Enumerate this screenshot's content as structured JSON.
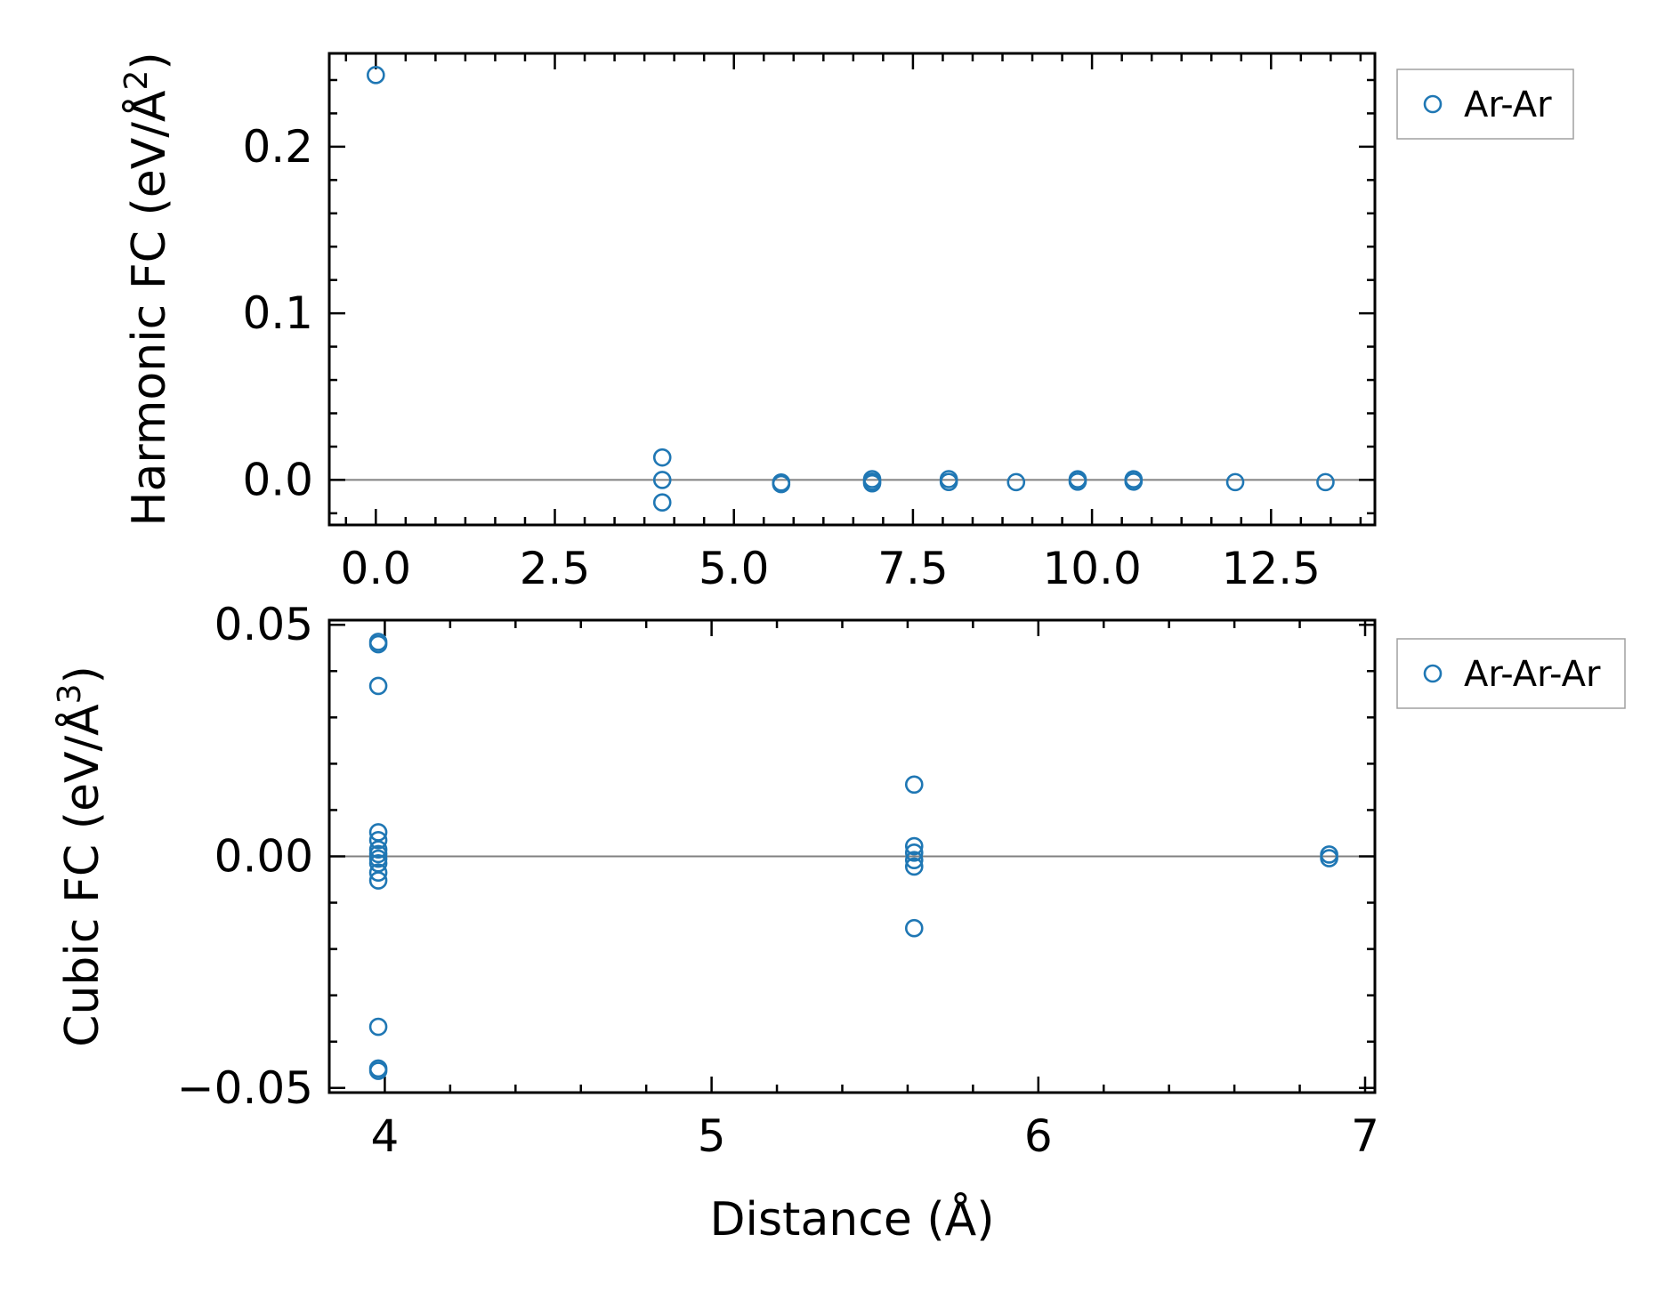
{
  "colors": {
    "marker": "#1f77b4",
    "zero_line": "#808080",
    "axes": "#000000"
  },
  "chart_data": [
    {
      "type": "scatter",
      "ylabel": "Harmonic FC (eV/Å",
      "ylabel_power": "2",
      "ylabel_close": ")",
      "xlabel": "",
      "xlim": [
        -0.65,
        13.95
      ],
      "ylim": [
        -0.027,
        0.256
      ],
      "xticks": [
        0.0,
        2.5,
        5.0,
        7.5,
        10.0,
        12.5
      ],
      "xtick_labels": [
        "0.0",
        "2.5",
        "5.0",
        "7.5",
        "10.0",
        "12.5"
      ],
      "yticks": [
        0.0,
        0.1,
        0.2
      ],
      "ytick_labels": [
        "0.0",
        "0.1",
        "0.2"
      ],
      "zero_line": true,
      "grid": false,
      "legend_position": "outside-right",
      "series": [
        {
          "name": "Ar-Ar",
          "points": [
            [
              0.0,
              0.243
            ],
            [
              4.0,
              0.0135
            ],
            [
              4.0,
              0.0
            ],
            [
              4.0,
              -0.0135
            ],
            [
              5.66,
              -0.0015
            ],
            [
              5.66,
              -0.0025
            ],
            [
              6.93,
              0.0005
            ],
            [
              6.93,
              -0.001
            ],
            [
              6.93,
              -0.002
            ],
            [
              8.0,
              0.0005
            ],
            [
              8.0,
              -0.0012
            ],
            [
              8.94,
              -0.0013
            ],
            [
              9.8,
              0.0004
            ],
            [
              9.8,
              -0.001
            ],
            [
              10.58,
              0.0004
            ],
            [
              10.58,
              -0.001
            ],
            [
              12.0,
              -0.0013
            ],
            [
              13.26,
              -0.0013
            ]
          ]
        }
      ]
    },
    {
      "type": "scatter",
      "ylabel": "Cubic FC (eV/Å",
      "ylabel_power": "3",
      "ylabel_close": ")",
      "xlabel": "Distance (Å)",
      "xlim": [
        3.83,
        7.03
      ],
      "ylim": [
        -0.051,
        0.051
      ],
      "xticks": [
        4,
        5,
        6,
        7
      ],
      "xtick_labels": [
        "4",
        "5",
        "6",
        "7"
      ],
      "yticks": [
        -0.05,
        0.0,
        0.05
      ],
      "ytick_labels": [
        "−0.05",
        "0.00",
        "0.05"
      ],
      "zero_line": true,
      "grid": false,
      "legend_position": "outside-right",
      "series": [
        {
          "name": "Ar-Ar-Ar",
          "points": [
            [
              3.98,
              0.0463
            ],
            [
              3.98,
              0.0458
            ],
            [
              3.98,
              0.0368
            ],
            [
              3.98,
              0.0052
            ],
            [
              3.98,
              0.0035
            ],
            [
              3.98,
              0.0015
            ],
            [
              3.98,
              0.0005
            ],
            [
              3.98,
              -0.0005
            ],
            [
              3.98,
              -0.0015
            ],
            [
              3.98,
              -0.0035
            ],
            [
              3.98,
              -0.0052
            ],
            [
              3.98,
              -0.0368
            ],
            [
              3.98,
              -0.0458
            ],
            [
              3.98,
              -0.0463
            ],
            [
              5.62,
              0.0155
            ],
            [
              5.62,
              0.0022
            ],
            [
              5.62,
              0.0008
            ],
            [
              5.62,
              -0.0008
            ],
            [
              5.62,
              -0.0022
            ],
            [
              5.62,
              -0.0155
            ],
            [
              6.89,
              0.0004
            ],
            [
              6.89,
              -0.0004
            ]
          ]
        }
      ]
    }
  ]
}
